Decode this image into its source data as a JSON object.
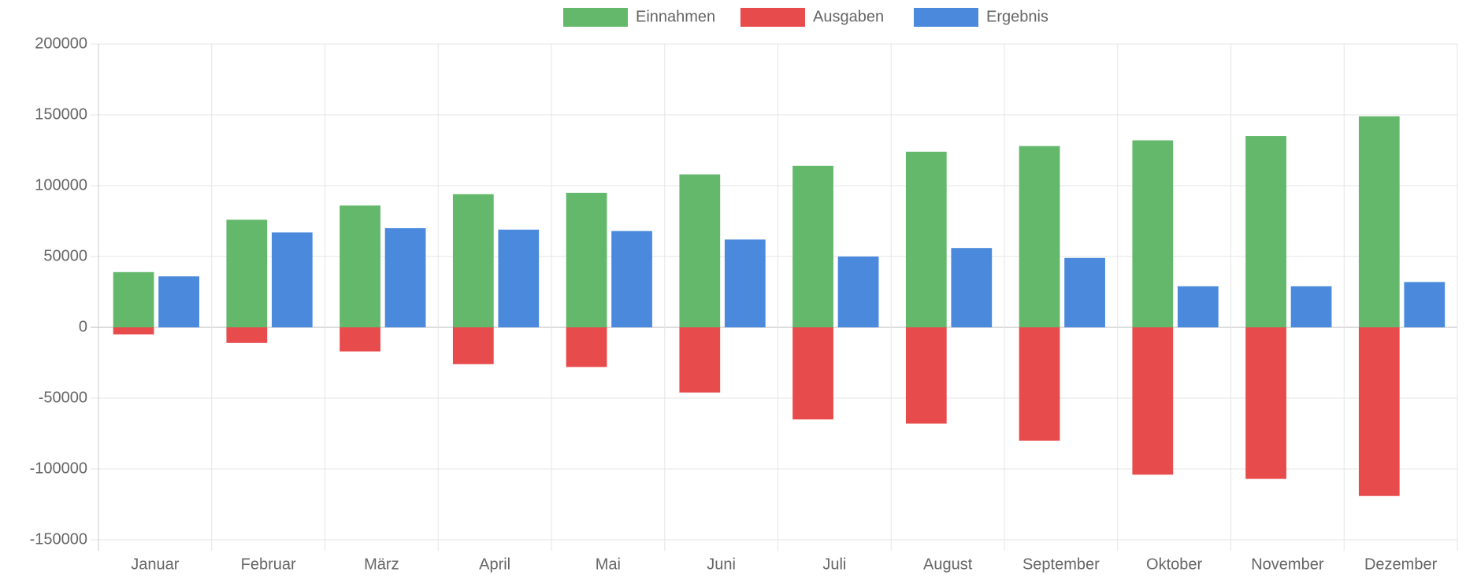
{
  "chart_data": {
    "type": "bar",
    "stacked": true,
    "categories": [
      "Januar",
      "Februar",
      "März",
      "April",
      "Mai",
      "Juni",
      "Juli",
      "August",
      "September",
      "Oktober",
      "November",
      "Dezember"
    ],
    "series": [
      {
        "name": "Einnahmen",
        "color": "#63b86b",
        "stack": "a",
        "values": [
          39000,
          76000,
          86000,
          94000,
          95000,
          108000,
          114000,
          124000,
          128000,
          132000,
          135000,
          149000
        ]
      },
      {
        "name": "Ausgaben",
        "color": "#e84b4b",
        "stack": "a",
        "values": [
          -5000,
          -11000,
          -17000,
          -26000,
          -28000,
          -46000,
          -65000,
          -68000,
          -80000,
          -104000,
          -107000,
          -119000
        ]
      },
      {
        "name": "Ergebnis",
        "color": "#4a89dc",
        "stack": "b",
        "values": [
          36000,
          67000,
          70000,
          69000,
          68000,
          62000,
          50000,
          56000,
          49000,
          29000,
          29000,
          32000
        ]
      }
    ],
    "ylim": [
      -150000,
      200000
    ],
    "yticks": [
      -150000,
      -100000,
      -50000,
      0,
      50000,
      100000,
      150000,
      200000
    ],
    "grid": true,
    "legend": "top"
  }
}
